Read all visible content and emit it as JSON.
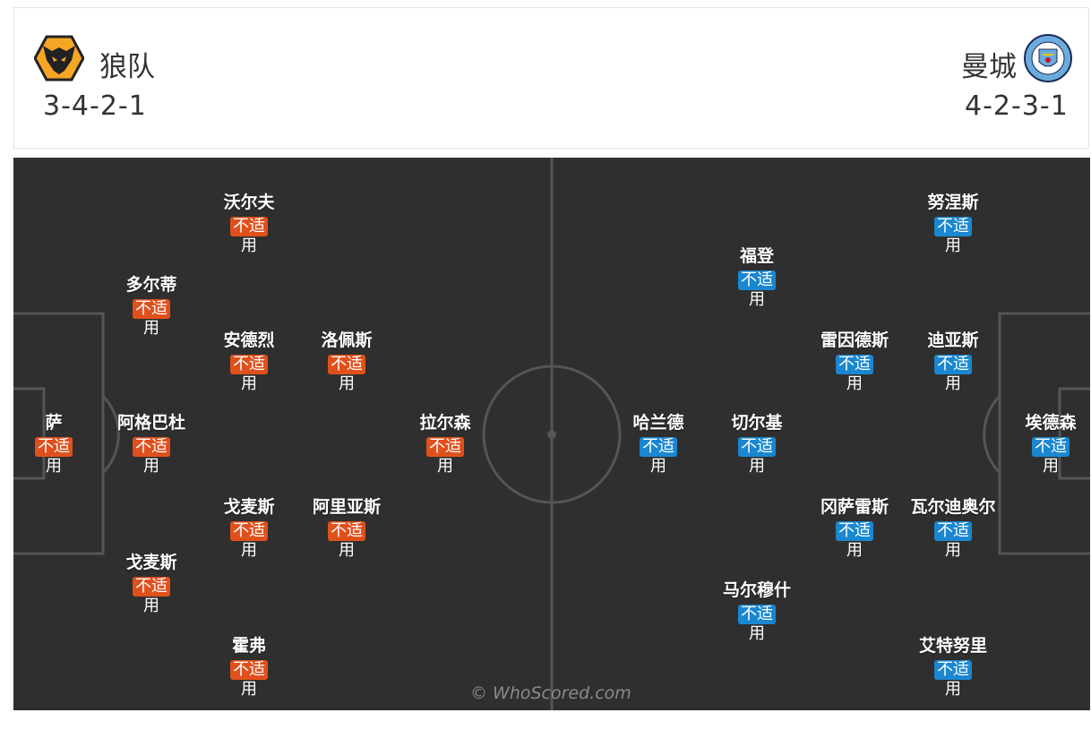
{
  "home": {
    "name": "狼队",
    "formation": "3-4-2-1",
    "color": "#e0501c",
    "logo_icon": "wolves-crest-icon"
  },
  "away": {
    "name": "曼城",
    "formation": "4-2-3-1",
    "color": "#1a87d0",
    "logo_icon": "man-city-crest-icon",
    "logo_text": "MANCHESTER CITY"
  },
  "status_line1": "不适",
  "status_line2": "用",
  "home_players": [
    {
      "name": "萨"
    },
    {
      "name": "多尔蒂"
    },
    {
      "name": "阿格巴杜"
    },
    {
      "name": "戈麦斯"
    },
    {
      "name": "沃尔夫"
    },
    {
      "name": "安德烈"
    },
    {
      "name": "戈麦斯"
    },
    {
      "name": "霍弗"
    },
    {
      "name": "洛佩斯"
    },
    {
      "name": "阿里亚斯"
    },
    {
      "name": "拉尔森"
    }
  ],
  "away_players": [
    {
      "name": "埃德森"
    },
    {
      "name": "努涅斯"
    },
    {
      "name": "迪亚斯"
    },
    {
      "name": "瓦尔迪奥尔"
    },
    {
      "name": "艾特努里"
    },
    {
      "name": "雷因德斯"
    },
    {
      "name": "冈萨雷斯"
    },
    {
      "name": "福登"
    },
    {
      "name": "切尔基"
    },
    {
      "name": "马尔穆什"
    },
    {
      "name": "哈兰德"
    }
  ],
  "watermark": "© WhoScored.com"
}
